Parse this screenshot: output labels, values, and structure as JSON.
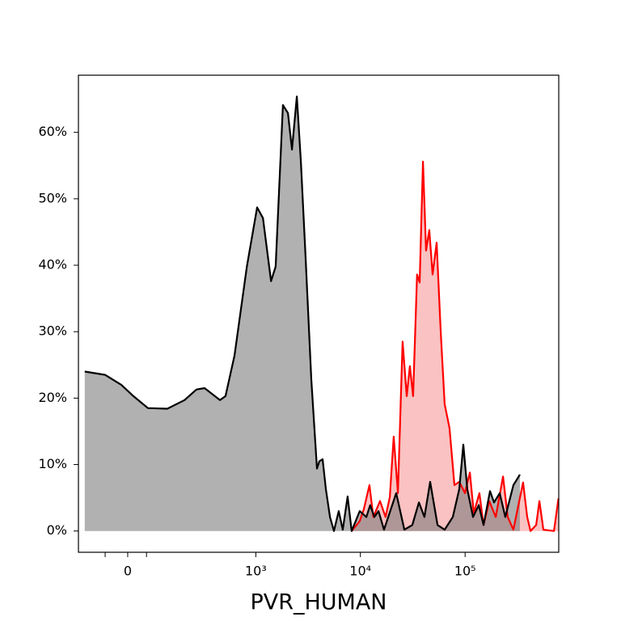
{
  "chart_data": {
    "type": "area",
    "xlabel": "PVR_HUMAN",
    "xscale": "biexponential",
    "xlim": [
      -157,
      783600
    ],
    "ylim": [
      -3.2,
      68.6
    ],
    "xticks": [
      0,
      {
        "value": 1000,
        "label": "10³"
      },
      {
        "value": 10000,
        "label": "10⁴"
      },
      {
        "value": 100000,
        "label": "10⁵"
      }
    ],
    "xminor_ticks": [
      -62,
      51
    ],
    "yticks": [
      {
        "value": 0,
        "label": "0%"
      },
      {
        "value": 10,
        "label": "10%"
      },
      {
        "value": 20,
        "label": "20%"
      },
      {
        "value": 30,
        "label": "30%"
      },
      {
        "value": 40,
        "label": "40%"
      },
      {
        "value": 50,
        "label": "50%"
      },
      {
        "value": 60,
        "label": "60%"
      }
    ],
    "series": [
      {
        "color": "#ff0000",
        "fill": "rgba(240,80,80,0.35)",
        "x": [
          8260,
          9860,
          10800,
          12200,
          13300,
          15400,
          17400,
          19100,
          20800,
          22800,
          25300,
          27700,
          29700,
          31900,
          34800,
          36800,
          39600,
          42400,
          45500,
          48900,
          53500,
          58400,
          63800,
          71000,
          79100,
          88000,
          99600,
          111000,
          121000,
          137000,
          150000,
          170000,
          196000,
          230000,
          255000,
          289000,
          358000,
          392000,
          421000,
          477000,
          512000,
          559000,
          705000,
          780000
        ],
        "values": [
          0,
          1.5,
          3.3,
          6.9,
          2.1,
          4.5,
          2.1,
          5.1,
          14.2,
          5.7,
          28.5,
          20.3,
          24.8,
          20.3,
          38.6,
          37.4,
          55.6,
          42.2,
          45.3,
          38.6,
          43.4,
          30.1,
          19.1,
          15.5,
          6.9,
          7.4,
          5.7,
          8.8,
          2.7,
          5.7,
          0.9,
          4.5,
          2.1,
          8.2,
          2.1,
          0.2,
          7.3,
          2.1,
          0,
          0.9,
          4.5,
          0.2,
          0,
          4.9
        ]
      },
      {
        "color": "#000000",
        "fill": "rgba(120,120,120,0.58)",
        "x": [
          -131,
          -62,
          -17,
          15,
          55,
          118,
          192,
          259,
          314,
          448,
          508,
          622,
          819,
          1030,
          1170,
          1400,
          1550,
          1820,
          2030,
          2220,
          2470,
          2700,
          3000,
          3400,
          3850,
          4060,
          4360,
          4680,
          5120,
          5590,
          6210,
          6790,
          7550,
          8260,
          9860,
          11400,
          12400,
          13600,
          14900,
          16800,
          22000,
          26300,
          31300,
          36200,
          40900,
          46400,
          54500,
          63800,
          76300,
          88000,
          96200,
          105000,
          119000,
          135000,
          150000,
          173000,
          189000,
          214000,
          242000,
          289000,
          334000
        ],
        "values": [
          24.0,
          23.5,
          22.0,
          20.3,
          18.5,
          18.4,
          19.7,
          21.3,
          21.5,
          19.7,
          20.3,
          26.4,
          39.8,
          48.7,
          47.1,
          37.6,
          39.8,
          64.1,
          62.9,
          57.4,
          65.4,
          55.6,
          41.0,
          22.8,
          9.4,
          10.5,
          10.8,
          6.3,
          2.1,
          0,
          3.0,
          0.2,
          5.2,
          0,
          3.0,
          2.1,
          3.9,
          2.1,
          3.0,
          0.2,
          5.7,
          0.2,
          0.9,
          4.3,
          2.1,
          7.4,
          0.9,
          0.2,
          2.1,
          6.3,
          13.0,
          6.3,
          2.1,
          3.9,
          0.9,
          6.0,
          4.3,
          5.7,
          2.1,
          6.9,
          8.5
        ]
      }
    ]
  }
}
